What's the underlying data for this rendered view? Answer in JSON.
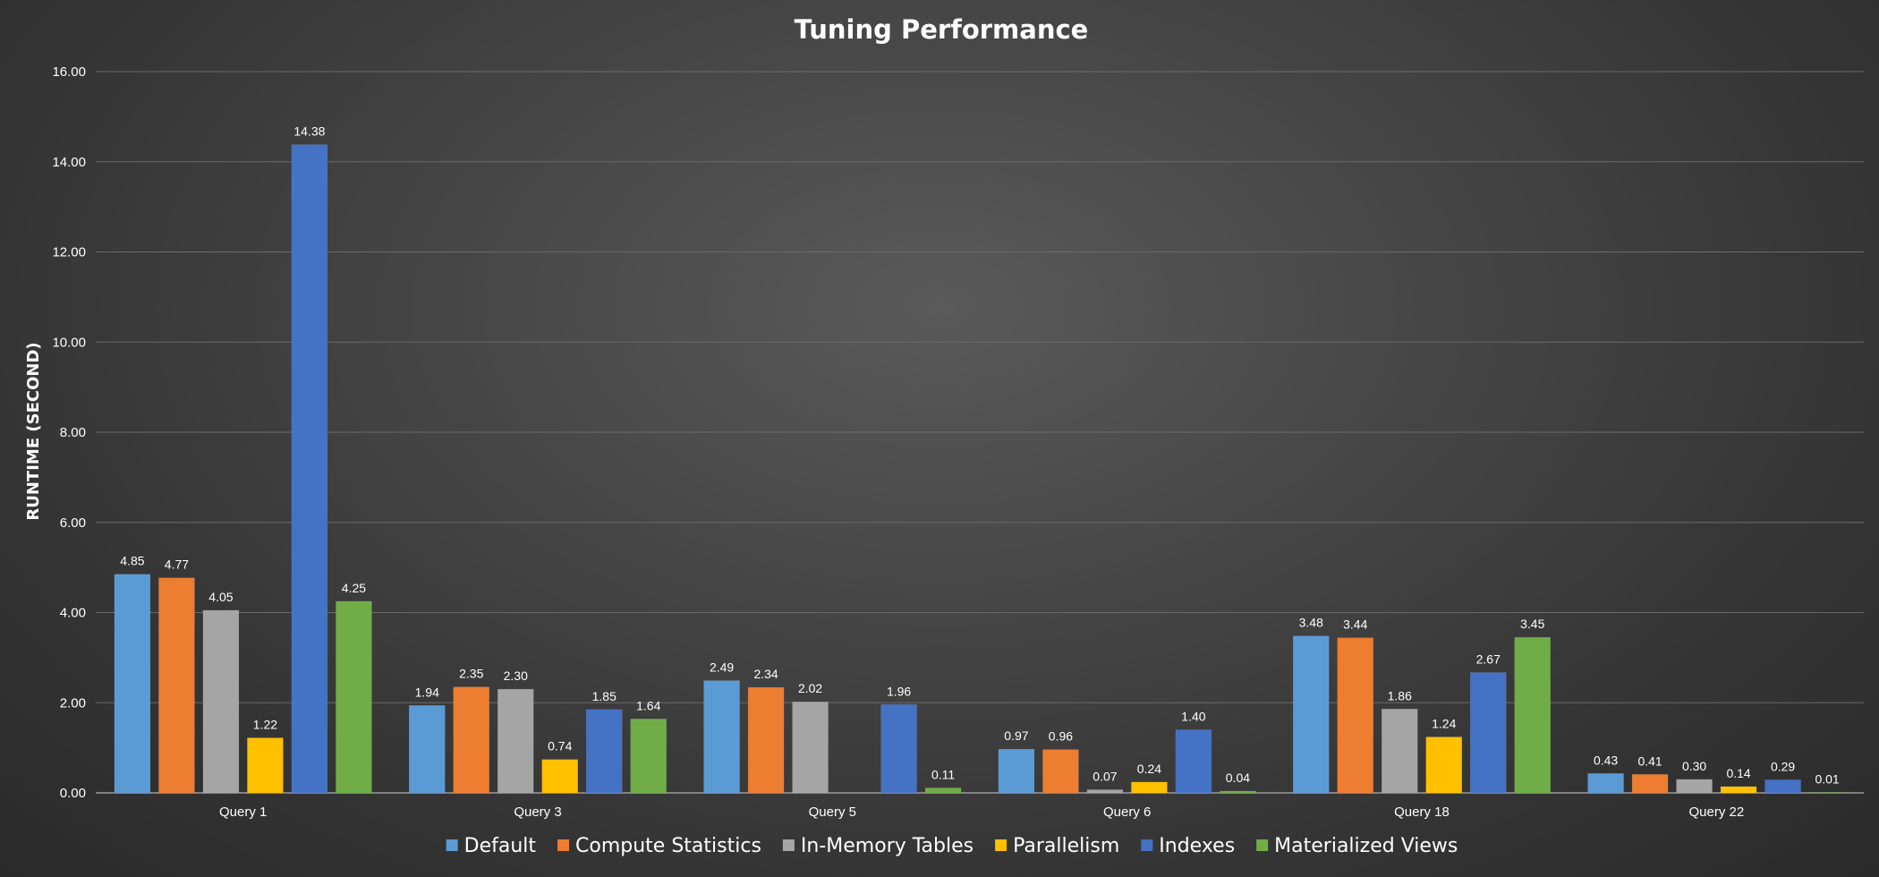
{
  "chart_data": {
    "type": "bar",
    "title": "Tuning Performance",
    "xlabel": "",
    "ylabel": "RUNTIME (SECOND)",
    "ylim": [
      0,
      16
    ],
    "y_ticks": [
      "0.00",
      "2.00",
      "4.00",
      "6.00",
      "8.00",
      "10.00",
      "12.00",
      "14.00",
      "16.00"
    ],
    "grid": true,
    "legend_position": "bottom",
    "categories": [
      "Query 1",
      "Query 3",
      "Query 5",
      "Query 6",
      "Query 18",
      "Query 22"
    ],
    "series": [
      {
        "name": "Default",
        "color": "#5b9bd5",
        "values": [
          4.85,
          1.94,
          2.49,
          0.97,
          3.48,
          0.43
        ],
        "labels": [
          "4.85",
          "1.94",
          "2.49",
          "0.97",
          "3.48",
          "0.43"
        ]
      },
      {
        "name": "Compute Statistics",
        "color": "#ed7d31",
        "values": [
          4.77,
          2.35,
          2.34,
          0.96,
          3.44,
          0.41
        ],
        "labels": [
          "4.77",
          "2.35",
          "2.34",
          "0.96",
          "3.44",
          "0.41"
        ]
      },
      {
        "name": "In-Memory Tables",
        "color": "#a5a5a5",
        "values": [
          4.05,
          2.3,
          2.02,
          0.07,
          1.86,
          0.3
        ],
        "labels": [
          "4.05",
          "2.30",
          "2.02",
          "0.07",
          "1.86",
          "0.30"
        ]
      },
      {
        "name": "Parallelism",
        "color": "#ffc000",
        "values": [
          1.22,
          0.74,
          null,
          0.24,
          1.24,
          0.14
        ],
        "labels": [
          "1.22",
          "0.74",
          "",
          "0.24",
          "1.24",
          "0.14"
        ]
      },
      {
        "name": "Indexes",
        "color": "#4472c4",
        "values": [
          14.38,
          1.85,
          1.96,
          1.4,
          2.67,
          0.29
        ],
        "labels": [
          "14.38",
          "1.85",
          "1.96",
          "1.40",
          "2.67",
          "0.29"
        ]
      },
      {
        "name": "Materialized Views",
        "color": "#70ad47",
        "values": [
          4.25,
          1.64,
          0.11,
          0.04,
          3.45,
          0.01
        ],
        "labels": [
          "4.25",
          "1.64",
          "0.11",
          "0.04",
          "3.45",
          "0.01"
        ]
      }
    ]
  }
}
